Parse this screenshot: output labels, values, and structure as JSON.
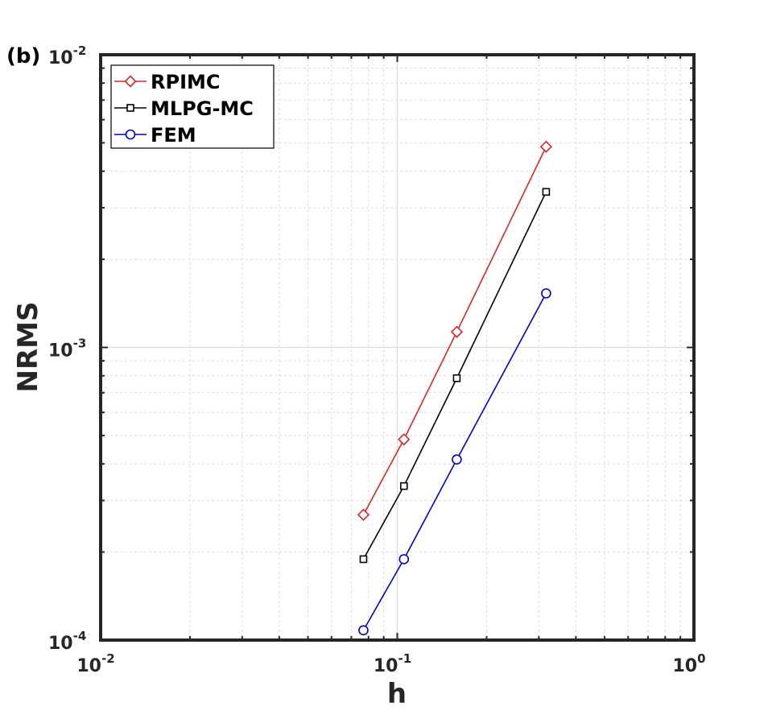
{
  "panel_label": "(b)",
  "colors": {
    "RPIMC": "#d62728",
    "MLPG-MC": "#000000",
    "FEM": "#0000c8",
    "axes": "#262626",
    "grid": "#dcdcdc"
  },
  "chart_data": {
    "type": "line",
    "xlabel": "h",
    "ylabel": "NRMS",
    "xscale": "log",
    "yscale": "log",
    "xlim": [
      0.01,
      1
    ],
    "ylim": [
      0.0001,
      0.01
    ],
    "grid": true,
    "legend_position": "top-left",
    "x_ticks": [
      {
        "value": 0.01,
        "base": "10",
        "exp": "-2"
      },
      {
        "value": 0.1,
        "base": "10",
        "exp": "-1"
      },
      {
        "value": 1,
        "base": "10",
        "exp": "0"
      }
    ],
    "y_ticks": [
      {
        "value": 0.0001,
        "base": "10",
        "exp": "-4"
      },
      {
        "value": 0.001,
        "base": "10",
        "exp": "-3"
      },
      {
        "value": 0.01,
        "base": "10",
        "exp": "-2"
      }
    ],
    "series": [
      {
        "name": "RPIMC",
        "marker": "diamond",
        "x": [
          0.0769,
          0.1053,
          0.1587,
          0.3175
        ],
        "y": [
          0.000268,
          0.000485,
          0.00113,
          0.00485
        ]
      },
      {
        "name": "MLPG-MC",
        "marker": "square",
        "x": [
          0.0769,
          0.1053,
          0.1587,
          0.3175
        ],
        "y": [
          0.000189,
          0.000336,
          0.000785,
          0.0034
        ]
      },
      {
        "name": "FEM",
        "marker": "circle",
        "x": [
          0.0769,
          0.1053,
          0.1587,
          0.3175
        ],
        "y": [
          0.000108,
          0.000189,
          0.000414,
          0.00153
        ]
      }
    ]
  }
}
